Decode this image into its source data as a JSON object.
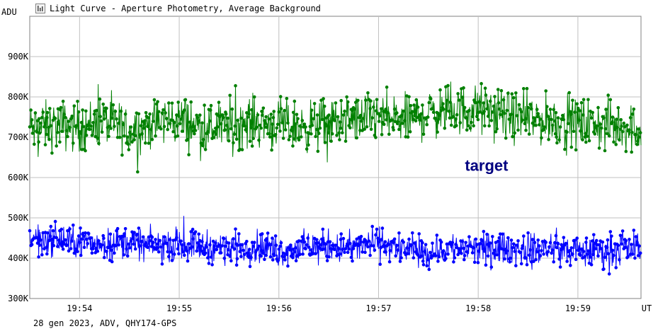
{
  "window": {
    "title": "Light Curve - Aperture Photometry, Average Background",
    "icon": "light-curve-app-icon"
  },
  "status_text": "28 gen 2023, ADV, QHY174-GPS",
  "chart_data": {
    "type": "line",
    "title": "Light Curve - Aperture Photometry, Average Background",
    "ylabel": "ADU",
    "xlabel": "UT",
    "ylim": [
      300000,
      1000000
    ],
    "xlim": [
      "19:53:30",
      "19:59:38"
    ],
    "y_ticks": [
      {
        "value": 300000,
        "label": "300K"
      },
      {
        "value": 400000,
        "label": "400K"
      },
      {
        "value": 500000,
        "label": "500K"
      },
      {
        "value": 600000,
        "label": "600K"
      },
      {
        "value": 700000,
        "label": "700K"
      },
      {
        "value": 800000,
        "label": "800K"
      },
      {
        "value": 900000,
        "label": "900K"
      }
    ],
    "x_ticks": [
      {
        "value": "19:54:00",
        "label": "19:54"
      },
      {
        "value": "19:55:00",
        "label": "19:55"
      },
      {
        "value": "19:56:00",
        "label": "19:56"
      },
      {
        "value": "19:57:00",
        "label": "19:57"
      },
      {
        "value": "19:58:00",
        "label": "19:58"
      },
      {
        "value": "19:59:00",
        "label": "19:59"
      }
    ],
    "grid": true,
    "annotations": [
      {
        "text": "target",
        "x": "19:58:05",
        "y": 617000
      }
    ],
    "series": [
      {
        "color": "#008000",
        "x": [
          "19:53:30",
          "19:53:45",
          "19:54:00",
          "19:54:15",
          "19:54:30",
          "19:54:45",
          "19:55:00",
          "19:55:15",
          "19:55:30",
          "19:55:45",
          "19:56:00",
          "19:56:15",
          "19:56:30",
          "19:56:45",
          "19:57:00",
          "19:57:15",
          "19:57:30",
          "19:57:45",
          "19:58:00",
          "19:58:15",
          "19:58:30",
          "19:58:45",
          "19:59:00",
          "19:59:15",
          "19:59:30",
          "19:59:38"
        ],
        "values": [
          720000,
          730000,
          725000,
          740000,
          715000,
          735000,
          745000,
          720000,
          730000,
          740000,
          730000,
          725000,
          735000,
          745000,
          750000,
          740000,
          760000,
          765000,
          770000,
          755000,
          745000,
          740000,
          735000,
          730000,
          725000,
          720000
        ],
        "spread": 70000
      },
      {
        "color": "#0000ff",
        "x": [
          "19:53:30",
          "19:53:45",
          "19:54:00",
          "19:54:15",
          "19:54:30",
          "19:54:45",
          "19:55:00",
          "19:55:15",
          "19:55:30",
          "19:55:45",
          "19:56:00",
          "19:56:15",
          "19:56:30",
          "19:56:45",
          "19:57:00",
          "19:57:15",
          "19:57:30",
          "19:57:45",
          "19:58:00",
          "19:58:15",
          "19:58:30",
          "19:58:45",
          "19:59:00",
          "19:59:15",
          "19:59:30",
          "19:59:38"
        ],
        "values": [
          450000,
          445000,
          440000,
          435000,
          440000,
          430000,
          435000,
          430000,
          425000,
          430000,
          420000,
          425000,
          430000,
          425000,
          440000,
          420000,
          415000,
          425000,
          420000,
          425000,
          420000,
          425000,
          415000,
          420000,
          425000,
          430000
        ],
        "spread": 45000
      }
    ]
  }
}
